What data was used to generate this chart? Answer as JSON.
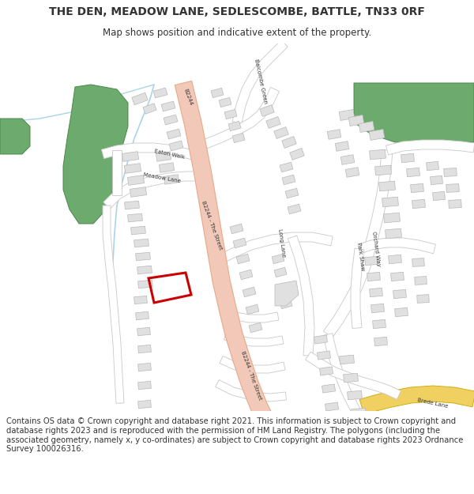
{
  "title": "THE DEN, MEADOW LANE, SEDLESCOMBE, BATTLE, TN33 0RF",
  "subtitle": "Map shows position and indicative extent of the property.",
  "footer": "Contains OS data © Crown copyright and database right 2021. This information is subject to Crown copyright and database rights 2023 and is reproduced with the permission of HM Land Registry. The polygons (including the associated geometry, namely x, y co-ordinates) are subject to Crown copyright and database rights 2023 Ordnance Survey 100026316.",
  "map_bg": "#ffffff",
  "road_main_color": "#f2c9b8",
  "road_main_stroke": "#e8a888",
  "road_secondary_color": "#ffffff",
  "road_secondary_stroke": "#c8c8c8",
  "road_yellow_color": "#f0d060",
  "road_yellow_stroke": "#c8a800",
  "building_fill": "#e0e0e0",
  "building_stroke": "#b8b8b8",
  "green_fill": "#6daa6d",
  "green_stroke": "#4a8a4a",
  "water_color": "#aad4e8",
  "plot_stroke": "#cc0000",
  "text_color": "#333333",
  "title_fontsize": 10,
  "subtitle_fontsize": 8.5,
  "footer_fontsize": 7.2
}
